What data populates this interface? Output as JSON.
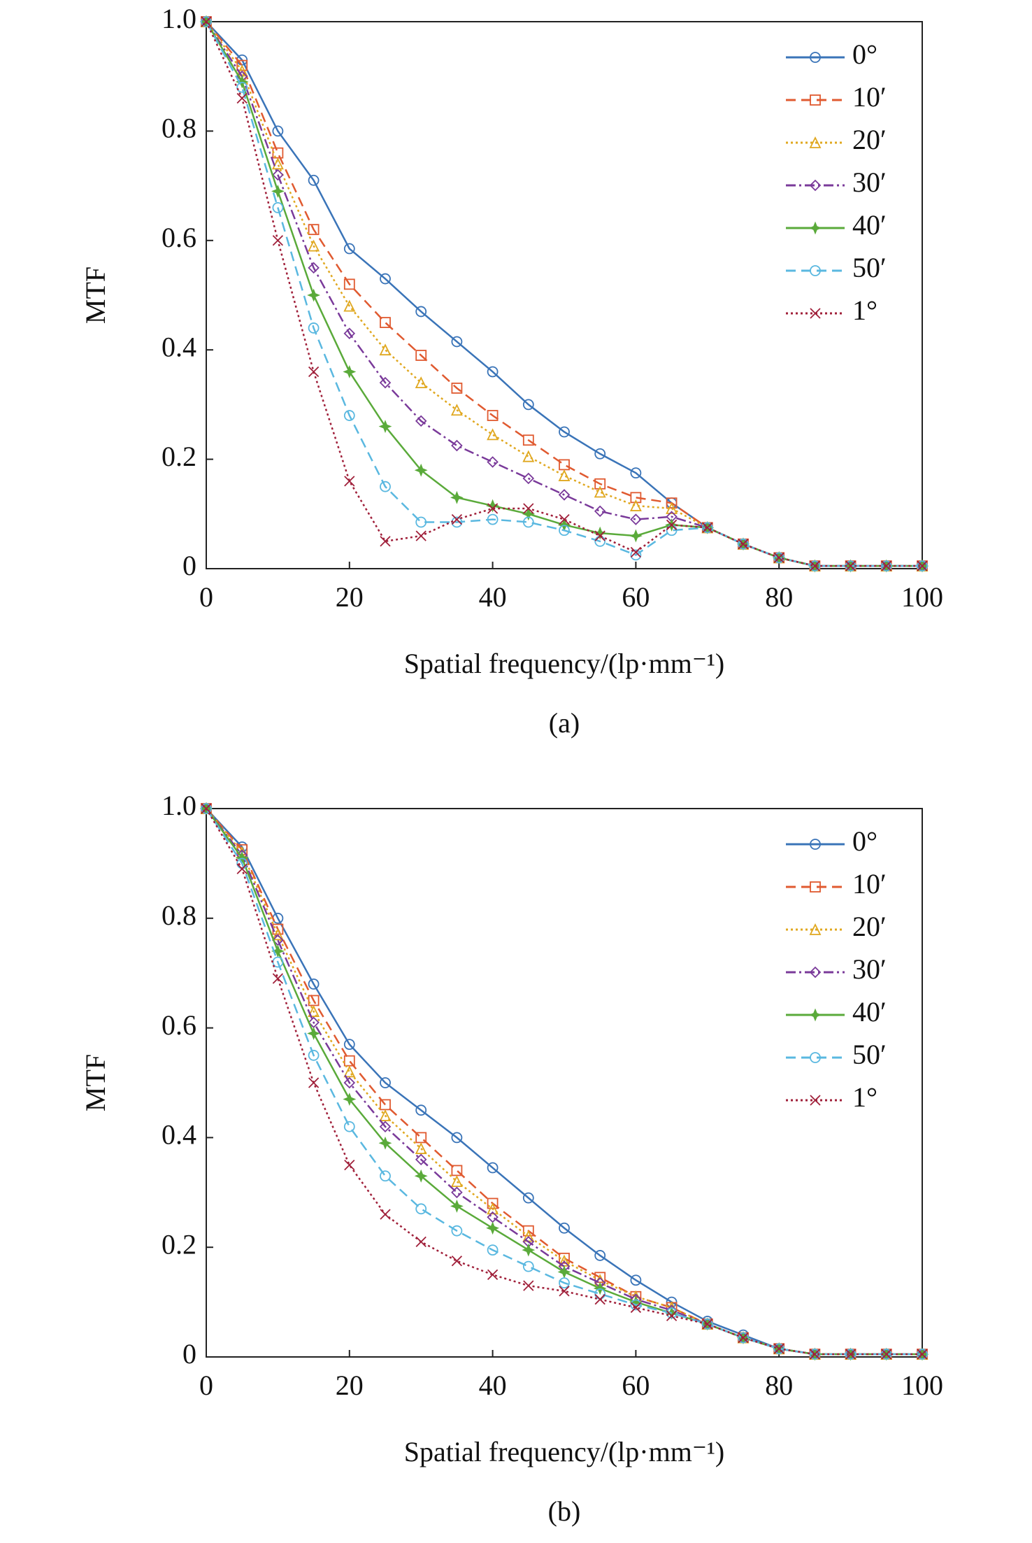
{
  "chart_data": [
    {
      "type": "line",
      "caption": "(a)",
      "xlabel": "Spatial frequency/(lp·mm⁻¹)",
      "ylabel": "MTF",
      "x": [
        0,
        5,
        10,
        15,
        20,
        25,
        30,
        35,
        40,
        45,
        50,
        55,
        60,
        65,
        70,
        75,
        80,
        85,
        90,
        95,
        100
      ],
      "xlim": [
        0,
        100
      ],
      "xticks": [
        0,
        20,
        40,
        60,
        80,
        100
      ],
      "ylim": [
        0,
        1
      ],
      "yticks": [
        0,
        0.2,
        0.4,
        0.6,
        0.8,
        {
          "value": 1,
          "label": "1.0"
        }
      ],
      "legend": "upper right",
      "series": [
        {
          "name": "0°",
          "color": "#3a74b8",
          "marker": "circle",
          "dash": "solid",
          "values": [
            1.0,
            0.93,
            0.8,
            0.71,
            0.585,
            0.53,
            0.47,
            0.415,
            0.36,
            0.3,
            0.25,
            0.21,
            0.175,
            0.12,
            0.075,
            0.045,
            0.02,
            0.005,
            0.005,
            0.005,
            0.005
          ]
        },
        {
          "name": "10′",
          "color": "#e05a30",
          "marker": "square",
          "dash": "dashed",
          "values": [
            1.0,
            0.92,
            0.76,
            0.62,
            0.52,
            0.45,
            0.39,
            0.33,
            0.28,
            0.235,
            0.19,
            0.155,
            0.13,
            0.12,
            0.075,
            0.045,
            0.02,
            0.005,
            0.005,
            0.005,
            0.005
          ]
        },
        {
          "name": "20′",
          "color": "#e0a820",
          "marker": "triangle",
          "dash": "dotted",
          "values": [
            1.0,
            0.91,
            0.74,
            0.59,
            0.48,
            0.4,
            0.34,
            0.29,
            0.245,
            0.205,
            0.17,
            0.14,
            0.115,
            0.11,
            0.075,
            0.045,
            0.02,
            0.005,
            0.005,
            0.005,
            0.005
          ]
        },
        {
          "name": "30′",
          "color": "#7a3a9a",
          "marker": "diamond",
          "dash": "dashdot",
          "values": [
            1.0,
            0.9,
            0.72,
            0.55,
            0.43,
            0.34,
            0.27,
            0.225,
            0.195,
            0.165,
            0.135,
            0.105,
            0.09,
            0.095,
            0.075,
            0.045,
            0.02,
            0.005,
            0.005,
            0.005,
            0.005
          ]
        },
        {
          "name": "40′",
          "color": "#5aaa3a",
          "marker": "star",
          "dash": "solid",
          "values": [
            1.0,
            0.89,
            0.69,
            0.5,
            0.36,
            0.26,
            0.18,
            0.13,
            0.115,
            0.1,
            0.08,
            0.065,
            0.06,
            0.08,
            0.075,
            0.045,
            0.02,
            0.005,
            0.005,
            0.005,
            0.005
          ]
        },
        {
          "name": "50′",
          "color": "#5ab8e0",
          "marker": "circle",
          "dash": "dashed",
          "values": [
            1.0,
            0.88,
            0.66,
            0.44,
            0.28,
            0.15,
            0.085,
            0.085,
            0.09,
            0.085,
            0.07,
            0.05,
            0.025,
            0.07,
            0.075,
            0.045,
            0.02,
            0.005,
            0.005,
            0.005,
            0.005
          ]
        },
        {
          "name": "1°",
          "color": "#a0203a",
          "marker": "x",
          "dash": "dotted",
          "values": [
            1.0,
            0.86,
            0.6,
            0.36,
            0.16,
            0.05,
            0.06,
            0.09,
            0.11,
            0.11,
            0.09,
            0.06,
            0.03,
            0.08,
            0.075,
            0.045,
            0.02,
            0.005,
            0.005,
            0.005,
            0.005
          ]
        }
      ]
    },
    {
      "type": "line",
      "caption": "(b)",
      "xlabel": "Spatial frequency/(lp·mm⁻¹)",
      "ylabel": "MTF",
      "x": [
        0,
        5,
        10,
        15,
        20,
        25,
        30,
        35,
        40,
        45,
        50,
        55,
        60,
        65,
        70,
        75,
        80,
        85,
        90,
        95,
        100
      ],
      "xlim": [
        0,
        100
      ],
      "xticks": [
        0,
        20,
        40,
        60,
        80,
        100
      ],
      "ylim": [
        0,
        1
      ],
      "yticks": [
        0,
        0.2,
        0.4,
        0.6,
        0.8,
        {
          "value": 1,
          "label": "1.0"
        }
      ],
      "legend": "upper right",
      "series": [
        {
          "name": "0°",
          "color": "#3a74b8",
          "marker": "circle",
          "dash": "solid",
          "values": [
            1.0,
            0.93,
            0.8,
            0.68,
            0.57,
            0.5,
            0.45,
            0.4,
            0.345,
            0.29,
            0.235,
            0.185,
            0.14,
            0.1,
            0.065,
            0.04,
            0.015,
            0.005,
            0.005,
            0.005,
            0.005
          ]
        },
        {
          "name": "10′",
          "color": "#e05a30",
          "marker": "square",
          "dash": "dashed",
          "values": [
            1.0,
            0.925,
            0.78,
            0.65,
            0.54,
            0.46,
            0.4,
            0.34,
            0.28,
            0.23,
            0.18,
            0.145,
            0.11,
            0.09,
            0.06,
            0.035,
            0.015,
            0.005,
            0.005,
            0.005,
            0.005
          ]
        },
        {
          "name": "20′",
          "color": "#e0a820",
          "marker": "triangle",
          "dash": "dotted",
          "values": [
            1.0,
            0.92,
            0.77,
            0.63,
            0.52,
            0.44,
            0.38,
            0.32,
            0.27,
            0.22,
            0.175,
            0.14,
            0.11,
            0.09,
            0.06,
            0.035,
            0.015,
            0.005,
            0.005,
            0.005,
            0.005
          ]
        },
        {
          "name": "30′",
          "color": "#7a3a9a",
          "marker": "diamond",
          "dash": "dashdot",
          "values": [
            1.0,
            0.915,
            0.76,
            0.61,
            0.5,
            0.42,
            0.36,
            0.3,
            0.255,
            0.21,
            0.165,
            0.135,
            0.105,
            0.085,
            0.06,
            0.035,
            0.015,
            0.005,
            0.005,
            0.005,
            0.005
          ]
        },
        {
          "name": "40′",
          "color": "#5aaa3a",
          "marker": "star",
          "dash": "solid",
          "values": [
            1.0,
            0.91,
            0.74,
            0.59,
            0.47,
            0.39,
            0.33,
            0.275,
            0.235,
            0.195,
            0.155,
            0.125,
            0.1,
            0.08,
            0.06,
            0.035,
            0.015,
            0.005,
            0.005,
            0.005,
            0.005
          ]
        },
        {
          "name": "50′",
          "color": "#5ab8e0",
          "marker": "circle",
          "dash": "dashed",
          "values": [
            1.0,
            0.9,
            0.72,
            0.55,
            0.42,
            0.33,
            0.27,
            0.23,
            0.195,
            0.165,
            0.135,
            0.115,
            0.095,
            0.08,
            0.06,
            0.035,
            0.015,
            0.005,
            0.005,
            0.005,
            0.005
          ]
        },
        {
          "name": "1°",
          "color": "#a0203a",
          "marker": "x",
          "dash": "dotted",
          "values": [
            1.0,
            0.89,
            0.69,
            0.5,
            0.35,
            0.26,
            0.21,
            0.175,
            0.15,
            0.13,
            0.12,
            0.105,
            0.09,
            0.075,
            0.06,
            0.035,
            0.015,
            0.005,
            0.005,
            0.005,
            0.005
          ]
        }
      ]
    }
  ]
}
